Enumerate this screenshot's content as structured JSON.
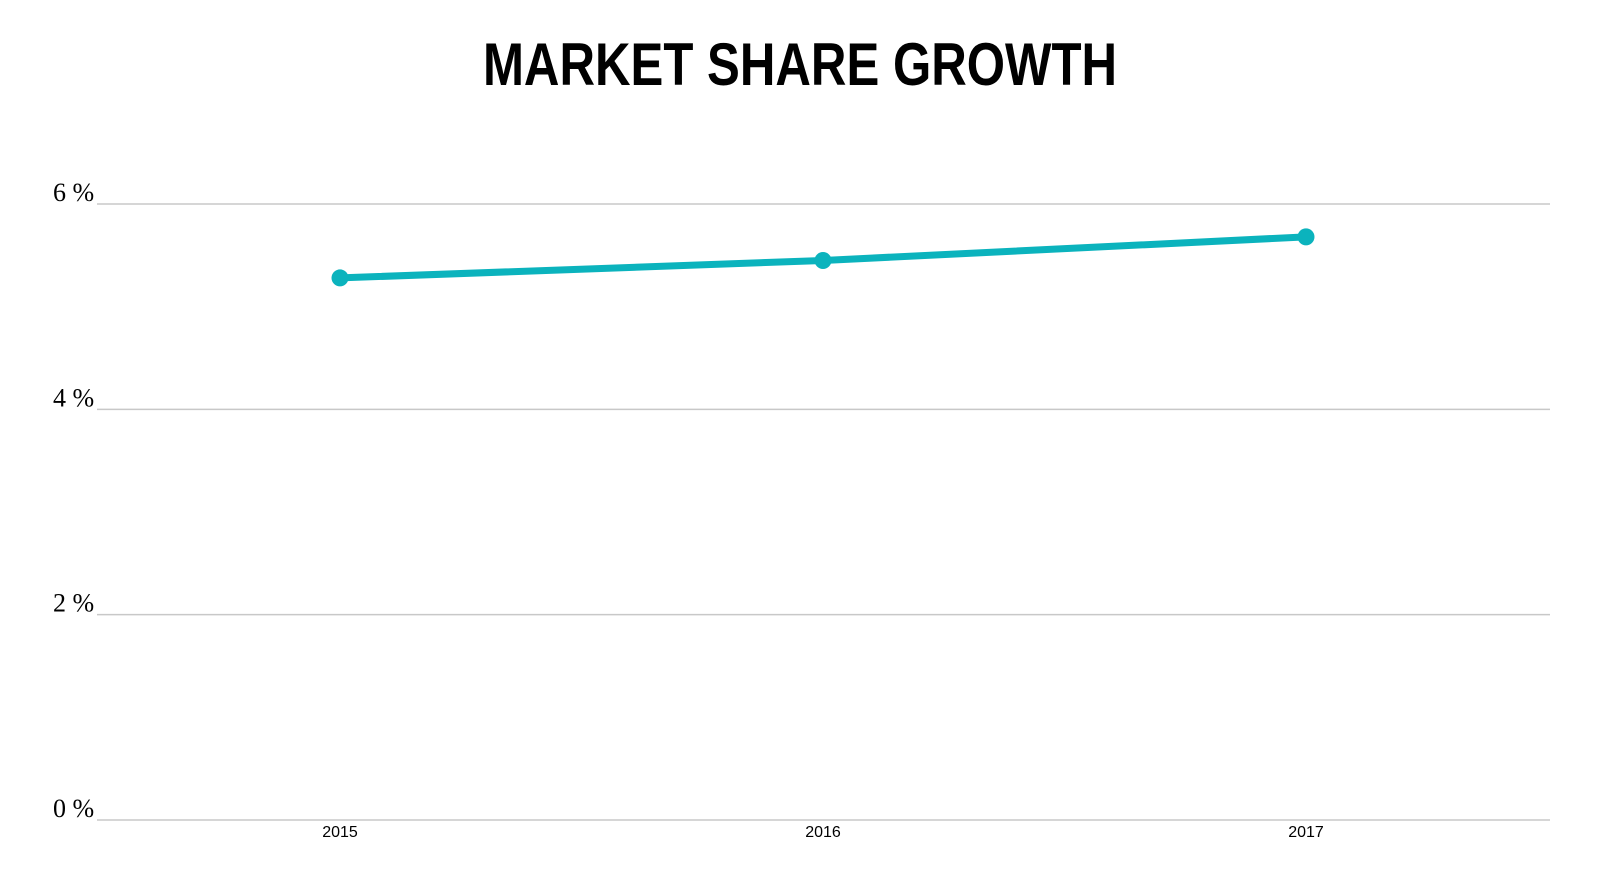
{
  "chart_data": {
    "type": "line",
    "title": "MARKET SHARE GROWTH",
    "xlabel": "",
    "ylabel": "",
    "categories": [
      "2015",
      "2016",
      "2017"
    ],
    "series": [
      {
        "values": [
          5.28,
          5.45,
          5.68
        ],
        "color": "#0bb3bd"
      }
    ],
    "ylim": [
      0,
      6
    ],
    "yticks": [
      0,
      2,
      4,
      6
    ],
    "ytick_labels": [
      "0 %",
      "2 %",
      "4 %",
      "6 %"
    ],
    "grid": true,
    "legend": "none"
  }
}
